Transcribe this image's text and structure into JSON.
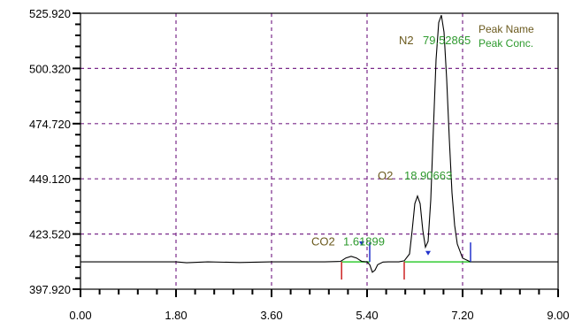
{
  "chart_data": {
    "type": "line",
    "title": "",
    "xlabel": "",
    "ylabel": "",
    "xlim": [
      0,
      9
    ],
    "ylim": [
      397.92,
      525.92
    ],
    "x_ticks": [
      0,
      1.8,
      3.6,
      5.4,
      7.2,
      9.0
    ],
    "x_tick_labels": [
      "0.00",
      "1.80",
      "3.60",
      "5.40",
      "7.20",
      "9.00"
    ],
    "y_ticks": [
      397.92,
      423.52,
      449.12,
      474.72,
      500.32,
      525.92
    ],
    "y_tick_labels": [
      "397.920",
      "423.520",
      "449.120",
      "474.720",
      "500.320",
      "525.920"
    ],
    "grid": true,
    "legend": {
      "position": "top-right",
      "entries": [
        {
          "label": "Peak Name",
          "color": "#6b5a1e"
        },
        {
          "label": "Peak Conc.",
          "color": "#2e9a2e"
        }
      ]
    },
    "colors": {
      "signal": "#000000",
      "grid": "#7a2a8a",
      "peak_name": "#6b5a1e",
      "peak_conc": "#2e9a2e",
      "baseline": "#33cc33",
      "start_marker": "#cc2222",
      "end_marker": "#2233cc"
    },
    "series": [
      {
        "x": [
          0.0,
          1.8,
          2.0,
          2.4,
          3.0,
          3.6,
          4.4,
          4.6,
          4.9,
          5.0,
          5.1,
          5.2,
          5.3,
          5.4,
          5.45,
          5.5,
          5.55,
          5.6,
          5.7,
          5.8,
          6.0,
          6.1,
          6.2,
          6.25,
          6.3,
          6.35,
          6.4,
          6.45,
          6.5,
          6.55,
          6.6,
          6.65,
          6.7,
          6.75,
          6.8,
          6.85,
          6.9,
          6.95,
          7.0,
          7.05,
          7.1,
          7.2,
          7.35,
          7.5,
          8.0,
          9.0
        ],
        "y": [
          410.6,
          410.6,
          410.2,
          410.6,
          410.3,
          410.6,
          410.6,
          410.6,
          410.8,
          412.4,
          413.2,
          412.4,
          410.8,
          410.6,
          409.3,
          405.8,
          406.8,
          409.3,
          410.5,
          410.6,
          410.6,
          411.1,
          414.3,
          425.3,
          437.6,
          441.1,
          437.6,
          425.3,
          417.4,
          420.1,
          439.3,
          472.4,
          504.4,
          521.6,
          525.0,
          517.2,
          495.4,
          467.5,
          442.7,
          427.6,
          418.9,
          412.3,
          410.6,
          410.6,
          410.6,
          410.6
        ]
      }
    ],
    "baselines": [
      {
        "x": [
          4.92,
          5.45
        ],
        "y": [
          410.6,
          410.6
        ]
      },
      {
        "x": [
          6.1,
          7.35
        ],
        "y": [
          410.6,
          410.6
        ]
      }
    ],
    "peak_marks": [
      {
        "x": 4.92,
        "type": "start"
      },
      {
        "x": 5.45,
        "type": "end"
      },
      {
        "x": 6.1,
        "type": "start"
      },
      {
        "x": 7.35,
        "type": "end"
      }
    ],
    "peaks": [
      {
        "name": "CO2",
        "conc": "1.61899",
        "x": 5.1
      },
      {
        "name": "O2",
        "conc": "18.90663",
        "x": 6.35
      },
      {
        "name": "N2",
        "conc": "79.52865",
        "x": 6.8
      }
    ]
  }
}
